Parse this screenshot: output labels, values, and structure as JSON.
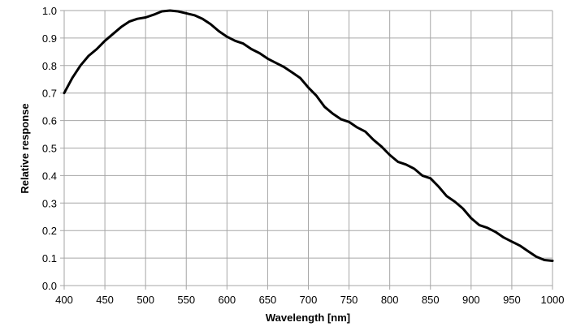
{
  "chart_data": {
    "type": "line",
    "title": "",
    "xlabel": "Wavelength [nm]",
    "ylabel": "Relative response",
    "xlim": [
      400,
      1000
    ],
    "ylim": [
      0,
      1.0
    ],
    "xticks": [
      "400",
      "450",
      "500",
      "550",
      "600",
      "650",
      "700",
      "750",
      "800",
      "850",
      "900",
      "950",
      "1000"
    ],
    "yticks": [
      "0.0",
      "0.1",
      "0.2",
      "0.3",
      "0.4",
      "0.5",
      "0.6",
      "0.7",
      "0.8",
      "0.9",
      "1.0"
    ],
    "grid": true,
    "line_color": "#000000",
    "grid_color": "#a6a6a6",
    "series": [
      {
        "x": [
          400,
          410,
          420,
          430,
          440,
          450,
          460,
          470,
          480,
          490,
          500,
          510,
          520,
          530,
          540,
          550,
          560,
          570,
          580,
          590,
          600,
          610,
          620,
          630,
          640,
          650,
          660,
          670,
          680,
          690,
          700,
          710,
          720,
          730,
          740,
          750,
          760,
          770,
          780,
          790,
          800,
          810,
          820,
          830,
          840,
          850,
          860,
          870,
          880,
          890,
          900,
          910,
          920,
          930,
          940,
          950,
          960,
          970,
          980,
          990,
          1000
        ],
        "y": [
          0.7,
          0.755,
          0.8,
          0.835,
          0.86,
          0.89,
          0.915,
          0.94,
          0.96,
          0.97,
          0.975,
          0.985,
          0.997,
          1.0,
          0.997,
          0.99,
          0.983,
          0.97,
          0.95,
          0.925,
          0.905,
          0.89,
          0.88,
          0.86,
          0.845,
          0.825,
          0.81,
          0.795,
          0.775,
          0.755,
          0.72,
          0.69,
          0.65,
          0.625,
          0.605,
          0.595,
          0.575,
          0.56,
          0.53,
          0.505,
          0.475,
          0.45,
          0.44,
          0.425,
          0.4,
          0.39,
          0.36,
          0.325,
          0.305,
          0.28,
          0.245,
          0.22,
          0.21,
          0.195,
          0.175,
          0.16,
          0.145,
          0.125,
          0.105,
          0.093,
          0.09
        ]
      }
    ]
  }
}
